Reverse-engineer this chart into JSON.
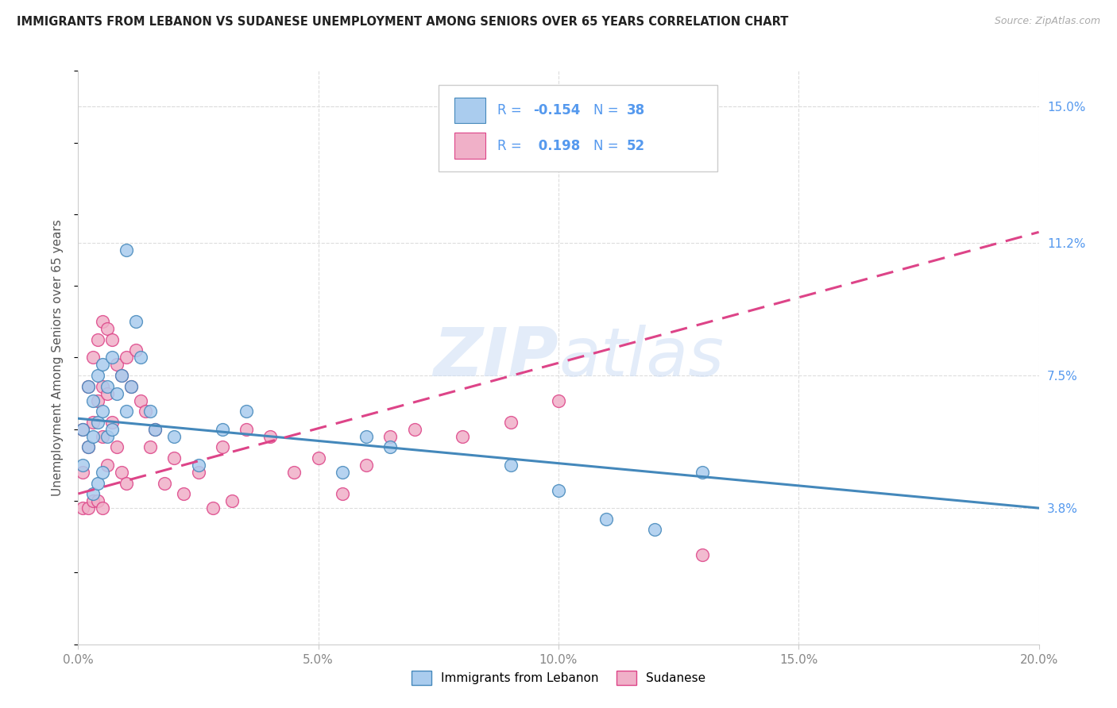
{
  "title": "IMMIGRANTS FROM LEBANON VS SUDANESE UNEMPLOYMENT AMONG SENIORS OVER 65 YEARS CORRELATION CHART",
  "source": "Source: ZipAtlas.com",
  "ylabel": "Unemployment Among Seniors over 65 years",
  "xlim": [
    0.0,
    0.2
  ],
  "ylim": [
    0.0,
    0.16
  ],
  "xtick_labels": [
    "0.0%",
    "",
    "",
    "",
    "",
    "5.0%",
    "",
    "",
    "",
    "",
    "10.0%",
    "",
    "",
    "",
    "",
    "15.0%",
    "",
    "",
    "",
    "",
    "20.0%"
  ],
  "xtick_vals": [
    0.0,
    0.01,
    0.02,
    0.03,
    0.04,
    0.05,
    0.06,
    0.07,
    0.08,
    0.09,
    0.1,
    0.11,
    0.12,
    0.13,
    0.14,
    0.15,
    0.16,
    0.17,
    0.18,
    0.19,
    0.2
  ],
  "ytick_right_labels": [
    "15.0%",
    "11.2%",
    "7.5%",
    "3.8%"
  ],
  "ytick_right_vals": [
    0.15,
    0.112,
    0.075,
    0.038
  ],
  "legend_label1": "Immigrants from Lebanon",
  "legend_label2": "Sudanese",
  "R1": -0.154,
  "N1": 38,
  "R2": 0.198,
  "N2": 52,
  "color_blue": "#aaccee",
  "color_pink": "#f0b0c8",
  "line_color_blue": "#4488bb",
  "line_color_pink": "#dd4488",
  "watermark_color": "#ccddf5",
  "background_color": "#ffffff",
  "grid_color": "#dddddd",
  "lebanon_x": [
    0.001,
    0.001,
    0.002,
    0.002,
    0.003,
    0.003,
    0.003,
    0.004,
    0.004,
    0.004,
    0.005,
    0.005,
    0.005,
    0.006,
    0.006,
    0.007,
    0.007,
    0.008,
    0.009,
    0.01,
    0.01,
    0.011,
    0.012,
    0.013,
    0.015,
    0.016,
    0.02,
    0.025,
    0.03,
    0.035,
    0.055,
    0.06,
    0.065,
    0.09,
    0.1,
    0.11,
    0.12,
    0.13
  ],
  "lebanon_y": [
    0.06,
    0.05,
    0.072,
    0.055,
    0.068,
    0.058,
    0.042,
    0.075,
    0.062,
    0.045,
    0.078,
    0.065,
    0.048,
    0.072,
    0.058,
    0.08,
    0.06,
    0.07,
    0.075,
    0.11,
    0.065,
    0.072,
    0.09,
    0.08,
    0.065,
    0.06,
    0.058,
    0.05,
    0.06,
    0.065,
    0.048,
    0.058,
    0.055,
    0.05,
    0.043,
    0.035,
    0.032,
    0.048
  ],
  "sudanese_x": [
    0.001,
    0.001,
    0.001,
    0.002,
    0.002,
    0.002,
    0.003,
    0.003,
    0.003,
    0.004,
    0.004,
    0.004,
    0.005,
    0.005,
    0.005,
    0.005,
    0.006,
    0.006,
    0.006,
    0.007,
    0.007,
    0.008,
    0.008,
    0.009,
    0.009,
    0.01,
    0.01,
    0.011,
    0.012,
    0.013,
    0.014,
    0.015,
    0.016,
    0.018,
    0.02,
    0.022,
    0.025,
    0.028,
    0.03,
    0.032,
    0.035,
    0.04,
    0.045,
    0.05,
    0.055,
    0.06,
    0.065,
    0.07,
    0.08,
    0.09,
    0.1,
    0.13
  ],
  "sudanese_y": [
    0.06,
    0.048,
    0.038,
    0.072,
    0.055,
    0.038,
    0.08,
    0.062,
    0.04,
    0.085,
    0.068,
    0.04,
    0.09,
    0.072,
    0.058,
    0.038,
    0.088,
    0.07,
    0.05,
    0.085,
    0.062,
    0.078,
    0.055,
    0.075,
    0.048,
    0.08,
    0.045,
    0.072,
    0.082,
    0.068,
    0.065,
    0.055,
    0.06,
    0.045,
    0.052,
    0.042,
    0.048,
    0.038,
    0.055,
    0.04,
    0.06,
    0.058,
    0.048,
    0.052,
    0.042,
    0.05,
    0.058,
    0.06,
    0.058,
    0.062,
    0.068,
    0.025
  ],
  "leb_line_x0": 0.0,
  "leb_line_x1": 0.2,
  "leb_line_y0": 0.063,
  "leb_line_y1": 0.038,
  "sud_line_x0": 0.0,
  "sud_line_x1": 0.2,
  "sud_line_y0": 0.042,
  "sud_line_y1": 0.115
}
